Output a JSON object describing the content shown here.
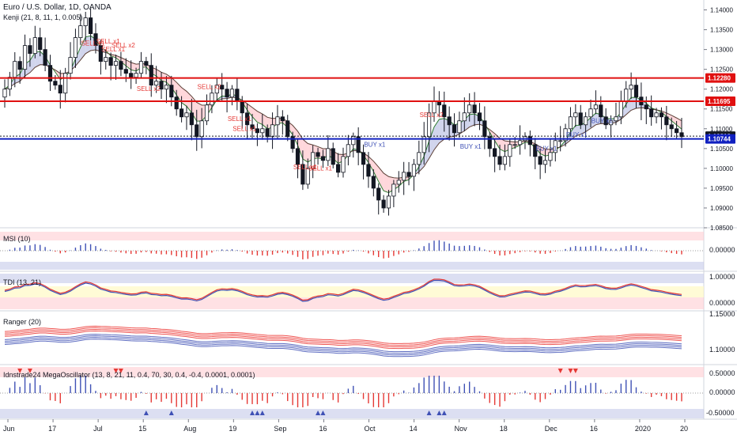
{
  "header": {
    "symbol": "Euro / U.S. Dollar, 1D, OANDA",
    "indicator": "Kenji (21, 8, 11, 1, 0.005)"
  },
  "colors": {
    "up": "#131722",
    "down": "#131722",
    "resistance": "#e01010",
    "support": "#1020c0",
    "sell": "#e53935",
    "buy": "#3f51b5",
    "cloud_bull": "#c5cae9",
    "cloud_bear": "#ffcdd2"
  },
  "price_labels": [
    {
      "name": "r1",
      "text": "1.12280",
      "value": 1.1228,
      "color": "#e01010"
    },
    {
      "name": "r2",
      "text": "1.11695",
      "value": 1.11695,
      "color": "#e01010"
    },
    {
      "name": "last",
      "text": "1.10813",
      "value": 1.10813,
      "color": "#131722"
    },
    {
      "name": "s1",
      "text": "1.10744",
      "value": 1.10744,
      "color": "#1020c0"
    }
  ],
  "x_ticks": [
    "Jun",
    "17",
    "Jul",
    "15",
    "Aug",
    "19",
    "Sep",
    "16",
    "Oct",
    "14",
    "Nov",
    "18",
    "Dec",
    "16",
    "2020",
    "20"
  ],
  "panes": {
    "msi": {
      "title": "MSI (10)",
      "ticks": [
        "0.00000"
      ]
    },
    "tdi": {
      "title": "TDI (13, 21)",
      "ticks": [
        "1.00000",
        "0.00000"
      ]
    },
    "ranger": {
      "title": "Ranger (20)",
      "ticks": [
        "1.15000",
        "1.10000"
      ]
    },
    "mega": {
      "title": "Idnstrade24 MegaOscillator (13, 8, 21, 11, 0.4, 70, 30, 0.4, -0.4, 0.0001, 0.0001)",
      "ticks": [
        "0.50000",
        "0.00000",
        "-0.50000"
      ]
    }
  },
  "chart_data": {
    "type": "candlestick",
    "title": "Euro / U.S. Dollar, 1D, OANDA",
    "y_ticks": [
      "1.14000",
      "1.13500",
      "1.13000",
      "1.12500",
      "1.12000",
      "1.11500",
      "1.11000",
      "1.10500",
      "1.10000",
      "1.09500",
      "1.09000",
      "1.08500"
    ],
    "ylim": [
      1.085,
      1.1425
    ],
    "horizontal_levels": [
      1.1228,
      1.11695,
      1.10744
    ],
    "close_path": [
      1.12,
      1.123,
      1.127,
      1.125,
      1.131,
      1.129,
      1.133,
      1.13,
      1.126,
      1.122,
      1.121,
      1.119,
      1.124,
      1.128,
      1.133,
      1.136,
      1.138,
      1.134,
      1.131,
      1.127,
      1.128,
      1.126,
      1.127,
      1.125,
      1.124,
      1.123,
      1.124,
      1.127,
      1.126,
      1.121,
      1.122,
      1.12,
      1.121,
      1.118,
      1.115,
      1.113,
      1.114,
      1.111,
      1.108,
      1.112,
      1.116,
      1.119,
      1.121,
      1.12,
      1.118,
      1.12,
      1.117,
      1.114,
      1.111,
      1.11,
      1.109,
      1.11,
      1.108,
      1.111,
      1.113,
      1.112,
      1.108,
      1.105,
      1.101,
      1.096,
      1.1,
      1.104,
      1.103,
      1.102,
      1.105,
      1.101,
      1.099,
      1.103,
      1.106,
      1.108,
      1.104,
      1.101,
      1.098,
      1.095,
      1.092,
      1.09,
      1.093,
      1.096,
      1.097,
      1.099,
      1.098,
      1.101,
      1.104,
      1.108,
      1.114,
      1.117,
      1.116,
      1.113,
      1.111,
      1.109,
      1.112,
      1.114,
      1.116,
      1.114,
      1.112,
      1.108,
      1.105,
      1.103,
      1.101,
      1.103,
      1.106,
      1.106,
      1.107,
      1.108,
      1.106,
      1.103,
      1.101,
      1.102,
      1.104,
      1.107,
      1.107,
      1.11,
      1.113,
      1.114,
      1.111,
      1.113,
      1.115,
      1.116,
      1.113,
      1.111,
      1.112,
      1.113,
      1.117,
      1.12,
      1.121,
      1.118,
      1.116,
      1.115,
      1.113,
      1.114,
      1.113,
      1.111,
      1.11,
      1.109,
      1.108
    ],
    "signals": [
      {
        "text": "SELL x1",
        "i": 17,
        "y": 1.131
      },
      {
        "text": "SELL x1",
        "i": 20,
        "y": 1.1315
      },
      {
        "text": "SELL x2",
        "i": 23,
        "y": 1.1305
      },
      {
        "text": "SELL x1",
        "i": 21,
        "y": 1.1295
      },
      {
        "text": "SELL x2",
        "i": 28,
        "y": 1.1195
      },
      {
        "text": "SELL x2",
        "i": 40,
        "y": 1.12
      },
      {
        "text": "SELL x1",
        "i": 46,
        "y": 1.112
      },
      {
        "text": "SELL x1",
        "i": 47,
        "y": 1.1095
      },
      {
        "text": "SELL x1",
        "i": 59,
        "y": 1.0998
      },
      {
        "text": "SELL x1",
        "i": 62,
        "y": 1.0995
      },
      {
        "text": "SELL x2",
        "i": 84,
        "y": 1.113
      },
      {
        "text": "BUY x1",
        "i": 73,
        "y": 1.1055
      },
      {
        "text": "BUY x1",
        "i": 92,
        "y": 1.105
      },
      {
        "text": "BUY x1",
        "i": 107,
        "y": 1.1045
      },
      {
        "text": "BUY x1",
        "i": 113,
        "y": 1.108
      },
      {
        "text": "BUY x1",
        "i": 118,
        "y": 1.1115
      }
    ]
  }
}
